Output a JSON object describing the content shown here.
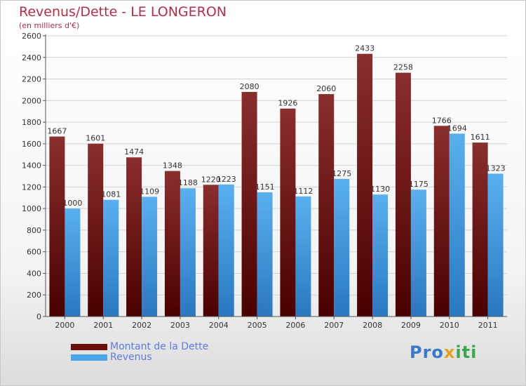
{
  "chart_data": {
    "type": "bar",
    "title": "Revenus/Dette - LE LONGERON",
    "subtitle": "(en milliers d'€)",
    "categories": [
      "2000",
      "2001",
      "2002",
      "2003",
      "2004",
      "2005",
      "2006",
      "2007",
      "2008",
      "2009",
      "2010",
      "2011"
    ],
    "series": [
      {
        "name": "Montant de la Dette",
        "color": "#7a1818",
        "values": [
          1667,
          1601,
          1474,
          1348,
          1220,
          2080,
          1926,
          2060,
          2433,
          2258,
          1766,
          1611
        ]
      },
      {
        "name": "Revenus",
        "color": "#4aa6e6",
        "values": [
          1000,
          1081,
          1109,
          1188,
          1223,
          1151,
          1112,
          1275,
          1130,
          1175,
          1694,
          1323
        ]
      }
    ],
    "ylim": [
      0,
      2600
    ],
    "yticks": [
      0,
      200,
      400,
      600,
      800,
      1000,
      1200,
      1400,
      1600,
      1800,
      2000,
      2200,
      2400,
      2600
    ],
    "grid": true,
    "legend_position": "bottom-left"
  },
  "logo": {
    "text": "Proxiti"
  }
}
